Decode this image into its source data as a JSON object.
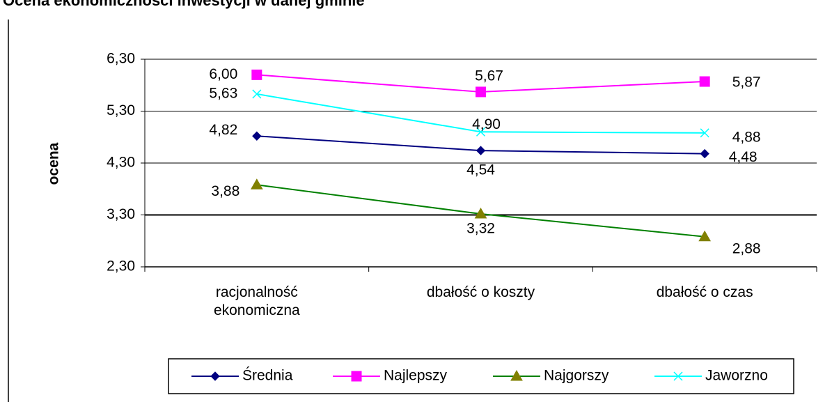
{
  "chart_data": {
    "type": "line",
    "title": "Ocena ekonomiczności inwestycji w danej gminie",
    "y_label": "ocena",
    "categories": [
      "racjonalność ekonomiczna",
      "dbałość o koszty",
      "dbałość o czas"
    ],
    "ylim": [
      2.3,
      6.3
    ],
    "yticks": [
      {
        "value": 2.3,
        "label": "2,30"
      },
      {
        "value": 3.3,
        "label": "3,30"
      },
      {
        "value": 4.3,
        "label": "4,30"
      },
      {
        "value": 5.3,
        "label": "5,30"
      },
      {
        "value": 6.3,
        "label": "6,30"
      }
    ],
    "grid": true,
    "legend": "bottom",
    "series": [
      {
        "name": "Średnia",
        "color": "#000080",
        "marker": "diamond",
        "values": [
          4.82,
          4.54,
          4.48
        ],
        "value_labels": [
          "4,82",
          "4,54",
          "4,48"
        ]
      },
      {
        "name": "Najlepszy",
        "color": "#ff00ff",
        "marker": "square",
        "values": [
          6.0,
          5.67,
          5.87
        ],
        "value_labels": [
          "6,00",
          "5,67",
          "5,87"
        ]
      },
      {
        "name": "Najgorszy",
        "color": "#008000",
        "marker_color": "#808000",
        "marker": "triangle",
        "values": [
          3.88,
          3.32,
          2.88
        ],
        "value_labels": [
          "3,88",
          "3,32",
          "2,88"
        ]
      },
      {
        "name": "Jaworzno",
        "color": "#00ffff",
        "marker": "x",
        "values": [
          5.63,
          4.9,
          4.88
        ],
        "value_labels": [
          "5,63",
          "4,90",
          "4,88"
        ]
      }
    ]
  }
}
